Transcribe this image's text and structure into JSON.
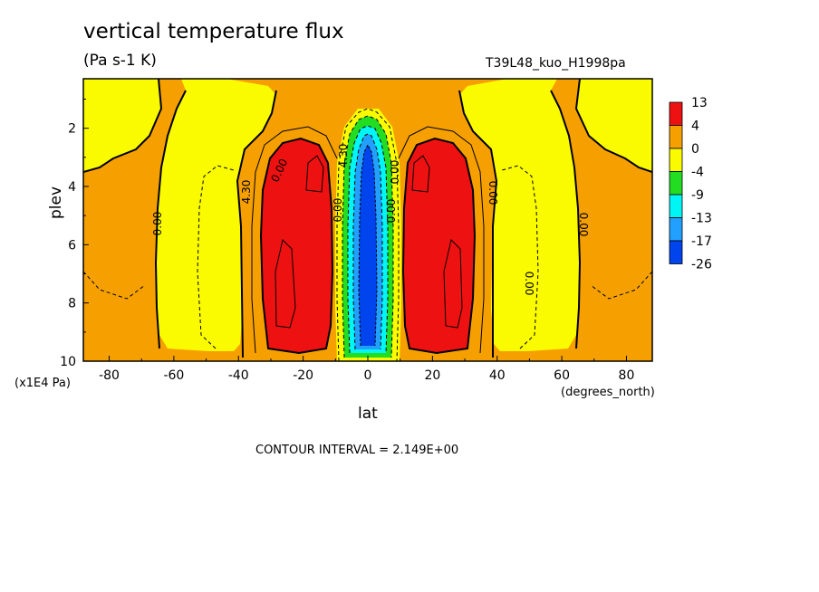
{
  "header": {
    "title": "vertical temperature flux",
    "units": "(Pa s-1 K)",
    "run": "T39L48_kuo_H1998pa"
  },
  "footer": {
    "contour_interval": "CONTOUR INTERVAL = 2.149E+00"
  },
  "chart_data": {
    "type": "heatmap",
    "title": "vertical temperature flux",
    "subtitle": "(Pa s-1 K)",
    "xlabel": "lat",
    "xunit": "(degrees_north)",
    "ylabel": "plev",
    "yunit": "(x1E4 Pa)",
    "xlim": [
      -88,
      88
    ],
    "ylim": [
      10,
      0.3
    ],
    "xticks": [
      "-80",
      "-60",
      "-40",
      "-20",
      "0",
      "20",
      "40",
      "60",
      "80"
    ],
    "yticks": [
      "2",
      "4",
      "6",
      "8",
      "10"
    ],
    "colorbar": {
      "labels": [
        "13",
        "4",
        "0",
        "-4",
        "-9",
        "-13",
        "-17",
        "-26"
      ],
      "colors": [
        "#ee1111",
        "#f5a000",
        "#fbfb00",
        "#22dd22",
        "#00f5f5",
        "#22a0ff",
        "#0044ee"
      ]
    },
    "contour_labels": [
      "0.00",
      "4.30",
      "0.00",
      "0.00",
      "4.30",
      "0.00",
      "0.00",
      "0.00",
      "0.00",
      "0.00"
    ],
    "regions": [
      {
        "name": "north-warm-lobe",
        "lat": [
          10,
          35
        ],
        "plev": [
          2.8,
          9.2
        ],
        "max_level": "13"
      },
      {
        "name": "south-warm-lobe",
        "lat": [
          -37,
          -12
        ],
        "plev": [
          2.8,
          9.2
        ],
        "max_level": "13"
      },
      {
        "name": "equatorial-cold-core",
        "lat": [
          -5,
          5
        ],
        "plev": [
          1.6,
          9.8
        ],
        "min_level": "-26"
      }
    ]
  }
}
